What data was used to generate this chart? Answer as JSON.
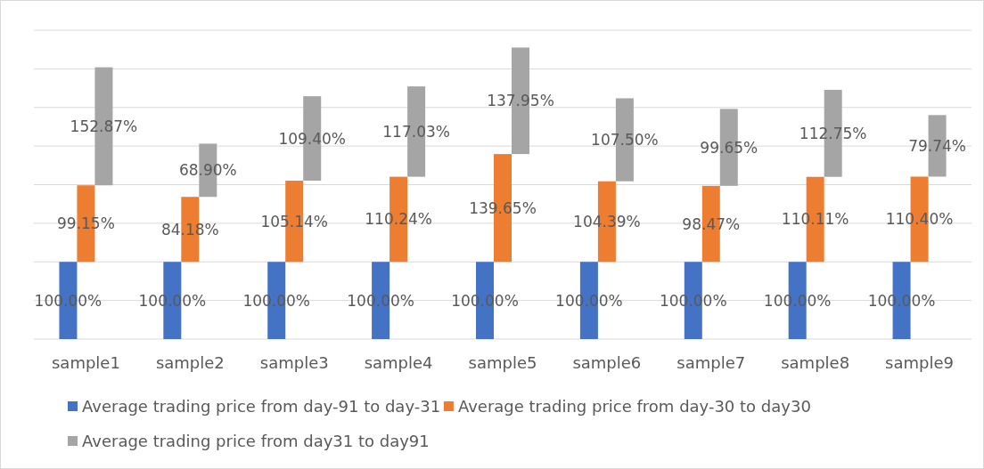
{
  "chart_data": {
    "type": "bar",
    "stacked": true,
    "categories": [
      "sample1",
      "sample2",
      "sample3",
      "sample4",
      "sample5",
      "sample6",
      "sample7",
      "sample8",
      "sample9"
    ],
    "series": [
      {
        "name": "Average trading price from day-91 to day-31",
        "color": "#4472c4",
        "values": [
          100.0,
          100.0,
          100.0,
          100.0,
          100.0,
          100.0,
          100.0,
          100.0,
          100.0
        ],
        "value_labels": [
          "100.00%",
          "100.00%",
          "100.00%",
          "100.00%",
          "100.00%",
          "100.00%",
          "100.00%",
          "100.00%",
          "100.00%"
        ]
      },
      {
        "name": "Average trading price from day-30 to day30",
        "color": "#ed7d31",
        "values": [
          99.15,
          84.18,
          105.14,
          110.24,
          139.65,
          104.39,
          98.47,
          110.11,
          110.4
        ],
        "value_labels": [
          "99.15%",
          "84.18%",
          "105.14%",
          "110.24%",
          "139.65%",
          "104.39%",
          "98.47%",
          "110.11%",
          "110.40%"
        ]
      },
      {
        "name": "Average trading price from day31 to day91",
        "color": "#a5a5a5",
        "values": [
          152.87,
          68.9,
          109.4,
          117.03,
          137.95,
          107.5,
          99.65,
          112.75,
          79.74
        ],
        "value_labels": [
          "152.87%",
          "68.90%",
          "109.40%",
          "117.03%",
          "137.95%",
          "107.50%",
          "99.65%",
          "112.75%",
          "79.74%"
        ]
      }
    ],
    "ylim": [
      0,
      400
    ],
    "yticks": [
      {
        "value": 0,
        "label": null
      },
      {
        "value": 50,
        "label": null
      },
      {
        "value": 100,
        "label": null
      },
      {
        "value": 150,
        "label": null
      },
      {
        "value": 200,
        "label": null
      },
      {
        "value": 250,
        "label": null
      },
      {
        "value": 300,
        "label": null
      },
      {
        "value": 350,
        "label": null
      },
      {
        "value": 400,
        "label": null
      }
    ],
    "tick_labels": "x",
    "grid": "y",
    "legend": "bottom"
  }
}
